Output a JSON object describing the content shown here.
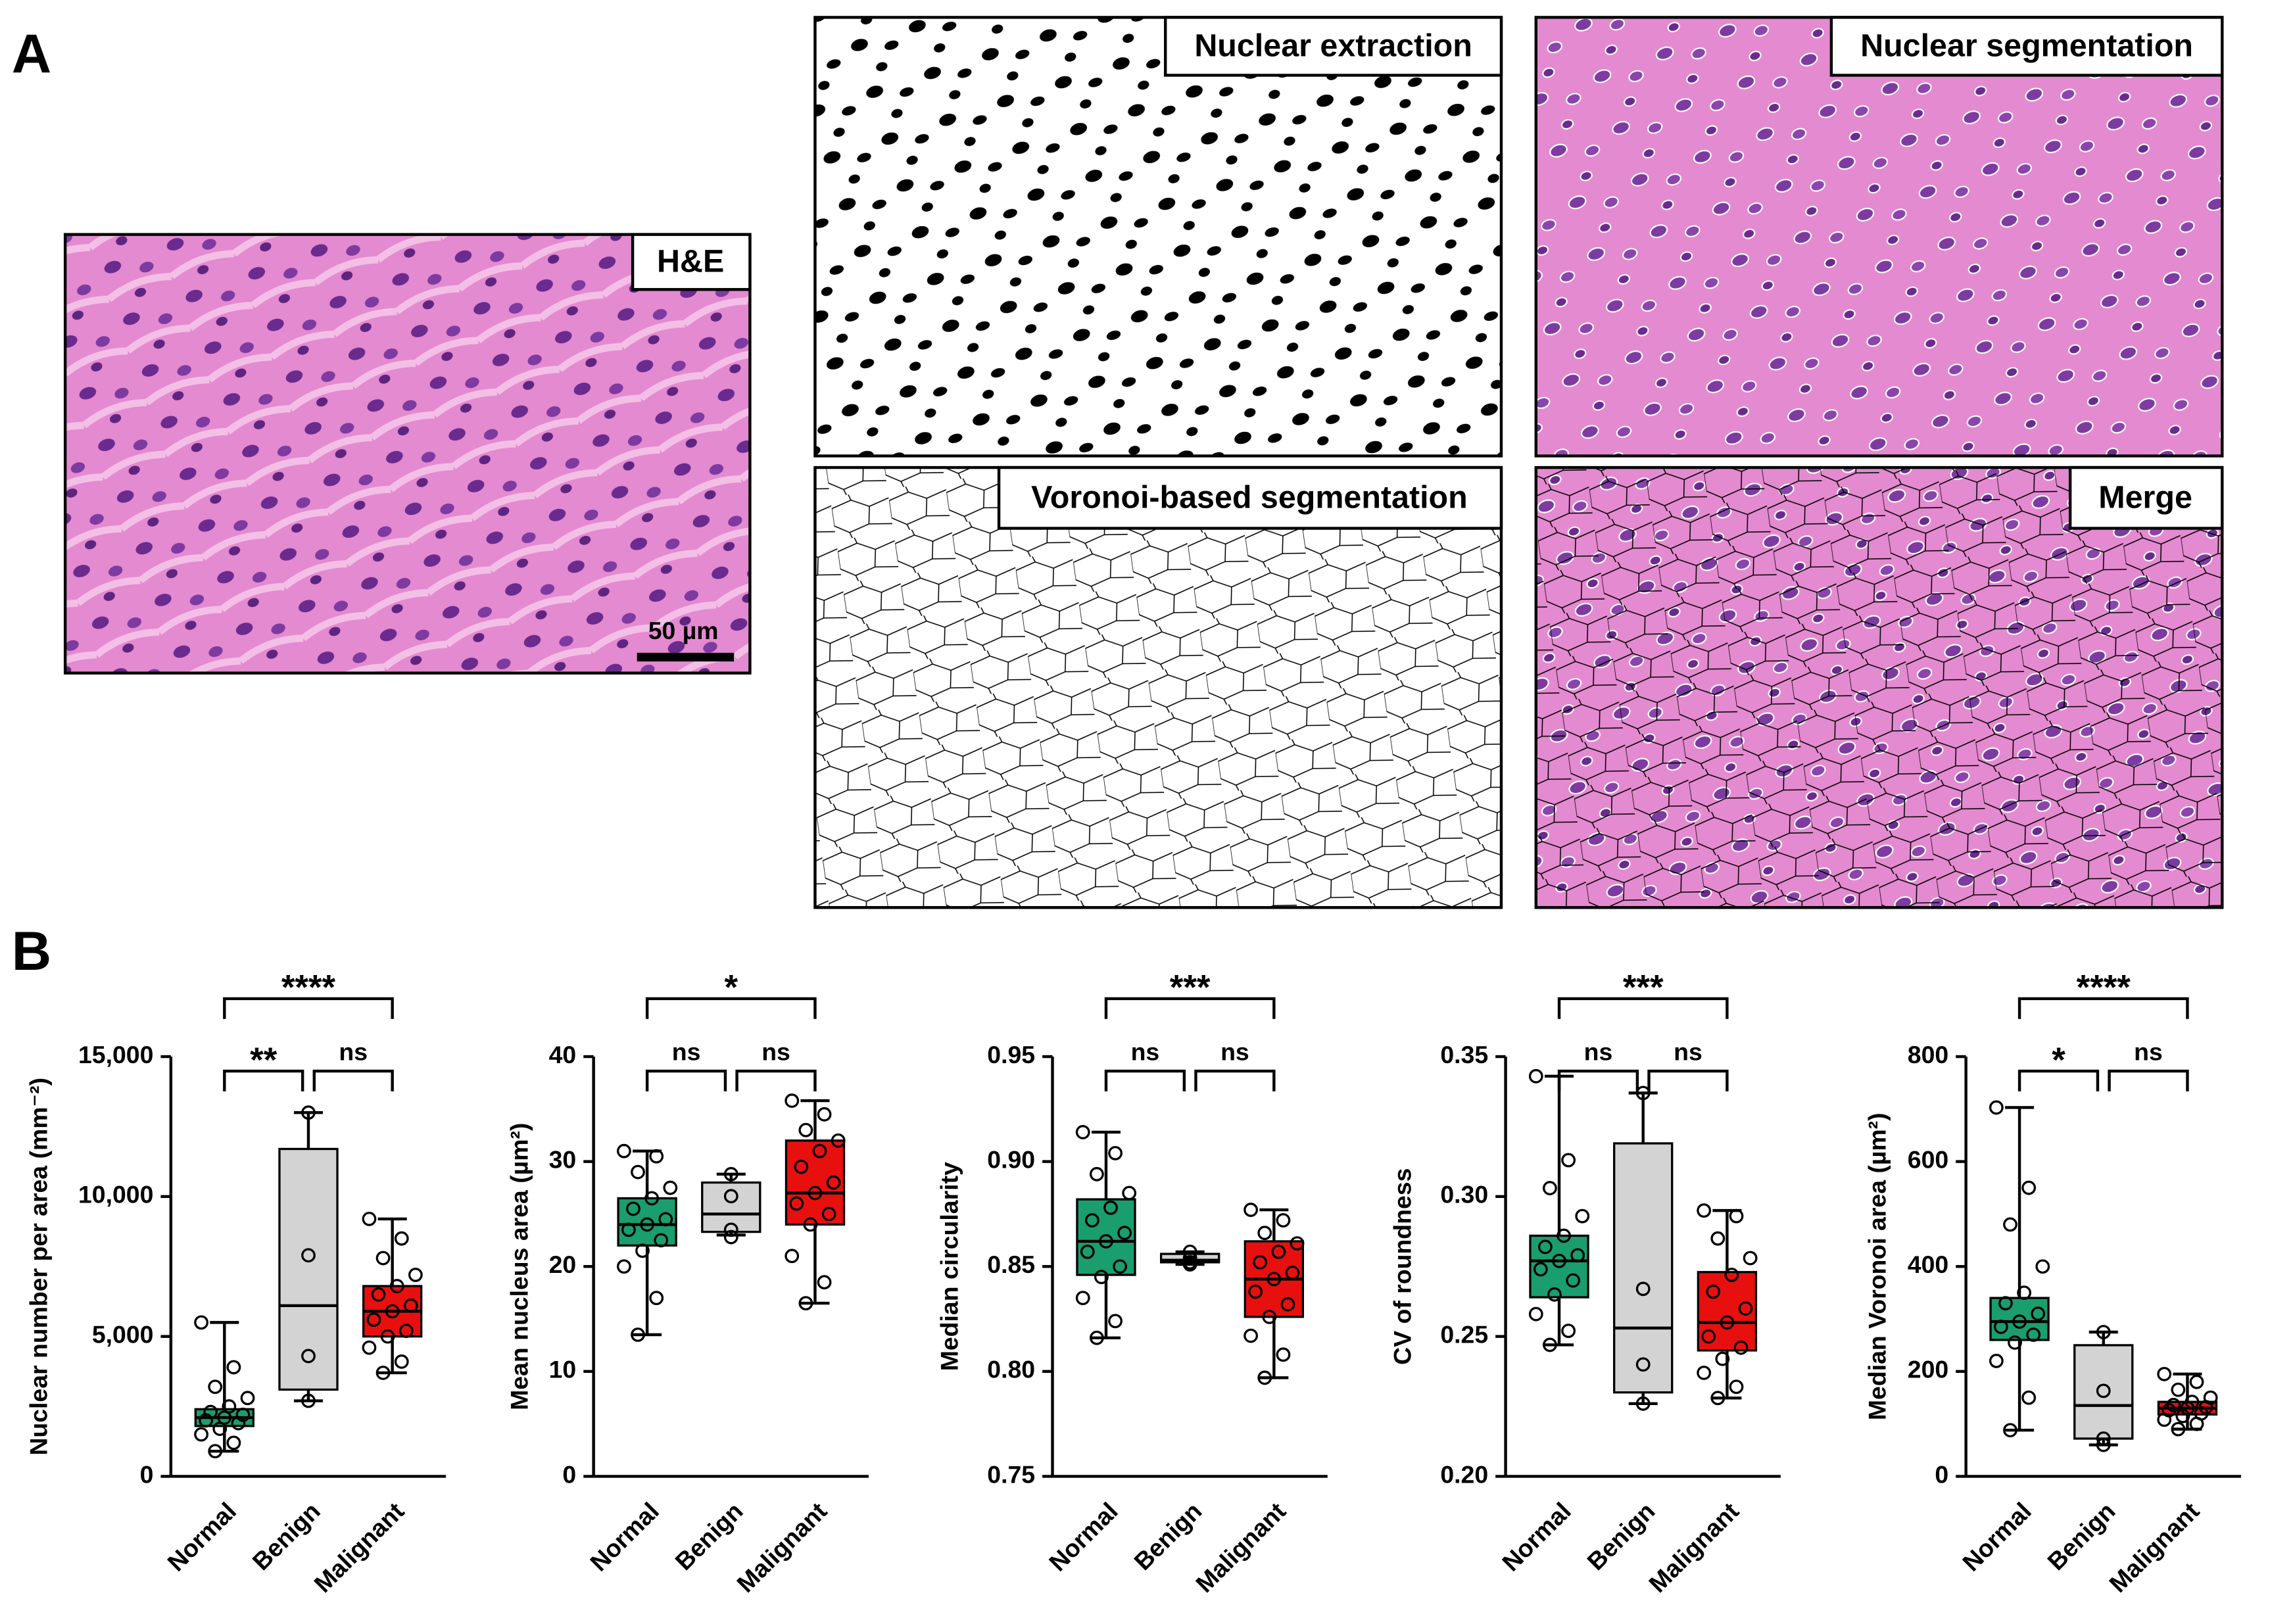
{
  "panel_labels": [
    "A",
    "B"
  ],
  "panel_a": {
    "images": [
      {
        "label": "H&E",
        "scale_bar": "50 µm"
      },
      {
        "label": "Nuclear extraction"
      },
      {
        "label": "Nuclear segmentation"
      },
      {
        "label": "Voronoi-based segmentation"
      },
      {
        "label": "Merge"
      }
    ]
  },
  "chart_data": [
    {
      "type": "box",
      "y_label": "Nuclear number per area (mm⁻²)",
      "categories": [
        "Normal",
        "Benign",
        "Malignant"
      ],
      "ylim": [
        0,
        15000
      ],
      "yticks": [
        0,
        {
          "value": 5000,
          "label": "5,000"
        },
        {
          "value": 10000,
          "label": "10,000"
        },
        {
          "value": 15000,
          "label": "15,000"
        }
      ],
      "boxes": [
        {
          "color": "#1a9e6e",
          "min": 900,
          "q1": 1800,
          "median": 2100,
          "q3": 2400,
          "max": 5500,
          "points": [
            5500,
            3900,
            3200,
            2800,
            2500,
            2300,
            2200,
            2100,
            2000,
            1900,
            1700,
            1500,
            1200,
            900
          ]
        },
        {
          "color": "#d3d3d3",
          "min": 2700,
          "q1": 3100,
          "median": 6100,
          "q3": 11700,
          "max": 13000,
          "points": [
            13000,
            7900,
            4300,
            2700
          ]
        },
        {
          "color": "#e8100f",
          "min": 3700,
          "q1": 5000,
          "median": 5900,
          "q3": 6800,
          "max": 9200,
          "points": [
            9200,
            8500,
            7800,
            7200,
            6800,
            6500,
            6100,
            5900,
            5600,
            5200,
            5000,
            4600,
            4100,
            3700
          ]
        }
      ],
      "annotations": [
        {
          "groups": [
            "Normal",
            "Malignant"
          ],
          "label": "****"
        },
        {
          "groups": [
            "Normal",
            "Benign"
          ],
          "label": "**"
        },
        {
          "groups": [
            "Benign",
            "Malignant"
          ],
          "label": "ns"
        }
      ]
    },
    {
      "type": "box",
      "y_label": "Mean nucleus area (µm²)",
      "categories": [
        "Normal",
        "Benign",
        "Malignant"
      ],
      "ylim": [
        0,
        40
      ],
      "yticks": [
        0,
        10,
        20,
        30,
        40
      ],
      "boxes": [
        {
          "color": "#1a9e6e",
          "min": 13.5,
          "q1": 22,
          "median": 24,
          "q3": 26.5,
          "max": 31,
          "points": [
            31,
            30.5,
            29,
            27.5,
            26.5,
            25.5,
            24.5,
            24,
            23.5,
            22.5,
            21.5,
            20,
            17,
            13.5
          ]
        },
        {
          "color": "#d3d3d3",
          "min": 23,
          "q1": 23.3,
          "median": 25,
          "q3": 28,
          "max": 28.8,
          "points": [
            28.8,
            26.7,
            23.5,
            22.8
          ]
        },
        {
          "color": "#e8100f",
          "min": 16.5,
          "q1": 24,
          "median": 27,
          "q3": 32,
          "max": 35.8,
          "points": [
            35.8,
            34.5,
            33,
            32,
            31,
            29.5,
            28,
            27,
            26,
            25,
            24,
            21,
            18.5,
            16.5
          ]
        }
      ],
      "annotations": [
        {
          "groups": [
            "Normal",
            "Malignant"
          ],
          "label": "*"
        },
        {
          "groups": [
            "Normal",
            "Benign"
          ],
          "label": "ns"
        },
        {
          "groups": [
            "Benign",
            "Malignant"
          ],
          "label": "ns"
        }
      ]
    },
    {
      "type": "box",
      "y_label": "Median circularity",
      "categories": [
        "Normal",
        "Benign",
        "Malignant"
      ],
      "ylim": [
        0.75,
        0.95
      ],
      "yticks": [
        0.75,
        {
          "value": 0.8,
          "label": "0.80"
        },
        0.85,
        {
          "value": 0.9,
          "label": "0.90"
        },
        0.95
      ],
      "boxes": [
        {
          "color": "#1a9e6e",
          "min": 0.816,
          "q1": 0.846,
          "median": 0.862,
          "q3": 0.882,
          "max": 0.914,
          "points": [
            0.914,
            0.904,
            0.894,
            0.885,
            0.878,
            0.872,
            0.866,
            0.862,
            0.857,
            0.85,
            0.845,
            0.835,
            0.824,
            0.816
          ]
        },
        {
          "color": "#d3d3d3",
          "min": 0.851,
          "q1": 0.852,
          "median": 0.853,
          "q3": 0.856,
          "max": 0.857,
          "points": [
            0.857,
            0.854,
            0.852,
            0.851
          ]
        },
        {
          "color": "#e8100f",
          "min": 0.797,
          "q1": 0.826,
          "median": 0.844,
          "q3": 0.862,
          "max": 0.877,
          "points": [
            0.877,
            0.872,
            0.866,
            0.861,
            0.857,
            0.852,
            0.847,
            0.844,
            0.838,
            0.832,
            0.826,
            0.817,
            0.808,
            0.797
          ]
        }
      ],
      "annotations": [
        {
          "groups": [
            "Normal",
            "Malignant"
          ],
          "label": "***"
        },
        {
          "groups": [
            "Normal",
            "Benign"
          ],
          "label": "ns"
        },
        {
          "groups": [
            "Benign",
            "Malignant"
          ],
          "label": "ns"
        }
      ]
    },
    {
      "type": "box",
      "y_label": "CV of roundness",
      "categories": [
        "Normal",
        "Benign",
        "Malignant"
      ],
      "ylim": [
        0.2,
        0.35
      ],
      "yticks": [
        {
          "value": 0.2,
          "label": "0.20"
        },
        0.25,
        {
          "value": 0.3,
          "label": "0.30"
        },
        0.35
      ],
      "boxes": [
        {
          "color": "#1a9e6e",
          "min": 0.247,
          "q1": 0.264,
          "median": 0.277,
          "q3": 0.286,
          "max": 0.343,
          "points": [
            0.343,
            0.313,
            0.303,
            0.293,
            0.286,
            0.282,
            0.279,
            0.277,
            0.274,
            0.27,
            0.265,
            0.258,
            0.252,
            0.247
          ]
        },
        {
          "color": "#d3d3d3",
          "min": 0.226,
          "q1": 0.23,
          "median": 0.253,
          "q3": 0.319,
          "max": 0.337,
          "points": [
            0.337,
            0.267,
            0.24,
            0.226
          ]
        },
        {
          "color": "#e8100f",
          "min": 0.228,
          "q1": 0.245,
          "median": 0.255,
          "q3": 0.273,
          "max": 0.295,
          "points": [
            0.295,
            0.293,
            0.285,
            0.278,
            0.272,
            0.266,
            0.26,
            0.255,
            0.25,
            0.246,
            0.242,
            0.237,
            0.232,
            0.228
          ]
        }
      ],
      "annotations": [
        {
          "groups": [
            "Normal",
            "Malignant"
          ],
          "label": "***"
        },
        {
          "groups": [
            "Normal",
            "Benign"
          ],
          "label": "ns"
        },
        {
          "groups": [
            "Benign",
            "Malignant"
          ],
          "label": "ns"
        }
      ]
    },
    {
      "type": "box",
      "y_label": "Median Voronoi area (µm²)",
      "categories": [
        "Normal",
        "Benign",
        "Malignant"
      ],
      "ylim": [
        0,
        800
      ],
      "yticks": [
        0,
        200,
        400,
        600,
        800
      ],
      "boxes": [
        {
          "color": "#1a9e6e",
          "min": 88,
          "q1": 260,
          "median": 295,
          "q3": 340,
          "max": 703,
          "points": [
            703,
            550,
            480,
            400,
            350,
            330,
            310,
            295,
            285,
            270,
            255,
            220,
            150,
            88
          ]
        },
        {
          "color": "#d3d3d3",
          "min": 60,
          "q1": 72,
          "median": 135,
          "q3": 250,
          "max": 275,
          "points": [
            275,
            163,
            72,
            60
          ]
        },
        {
          "color": "#e8100f",
          "min": 90,
          "q1": 118,
          "median": 130,
          "q3": 142,
          "max": 195,
          "points": [
            195,
            180,
            165,
            150,
            142,
            136,
            132,
            130,
            126,
            120,
            115,
            108,
            100,
            90
          ]
        }
      ],
      "annotations": [
        {
          "groups": [
            "Normal",
            "Malignant"
          ],
          "label": "****"
        },
        {
          "groups": [
            "Normal",
            "Benign"
          ],
          "label": "*"
        },
        {
          "groups": [
            "Benign",
            "Malignant"
          ],
          "label": "ns"
        }
      ]
    }
  ]
}
